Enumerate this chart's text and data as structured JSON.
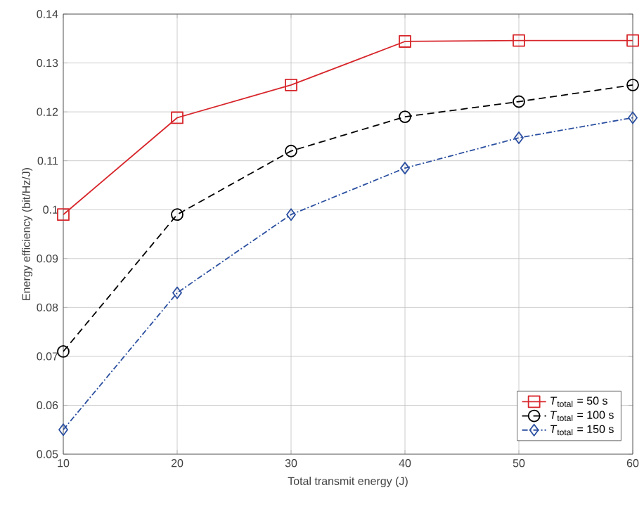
{
  "chart_data": {
    "type": "line",
    "xlabel": "Total transmit energy (J)",
    "ylabel": "Energy efficiency (bit/Hz/J)",
    "x": [
      10,
      20,
      30,
      40,
      50,
      60
    ],
    "series": [
      {
        "name": "*T*$_{total}$ = 50 s",
        "color": "#d7262b",
        "marker": "square",
        "line_style": "solid",
        "values": [
          0.099,
          0.1188,
          0.1255,
          0.1344,
          0.1346,
          0.1346
        ]
      },
      {
        "name": "*T*$_{total}$ = 100 s",
        "color": "#000000",
        "marker": "circle",
        "line_style": "dashed",
        "values": [
          0.071,
          0.099,
          0.112,
          0.119,
          0.1221,
          0.1255
        ]
      },
      {
        "name": "*T*$_{total}$ = 150 s",
        "color": "#2b4fa0",
        "marker": "diamond",
        "line_style": "dashdot",
        "values": [
          0.055,
          0.083,
          0.099,
          0.1085,
          0.1147,
          0.1188
        ]
      }
    ],
    "xlim": [
      10,
      60
    ],
    "xticks": [
      10,
      20,
      30,
      40,
      50,
      60
    ],
    "ylim": [
      0.05,
      0.14
    ],
    "yticks": [
      0.05,
      0.06,
      0.07,
      0.08,
      0.09,
      0.1,
      0.11,
      0.12,
      0.13,
      0.14
    ],
    "grid": true,
    "legend": "bottom right"
  }
}
